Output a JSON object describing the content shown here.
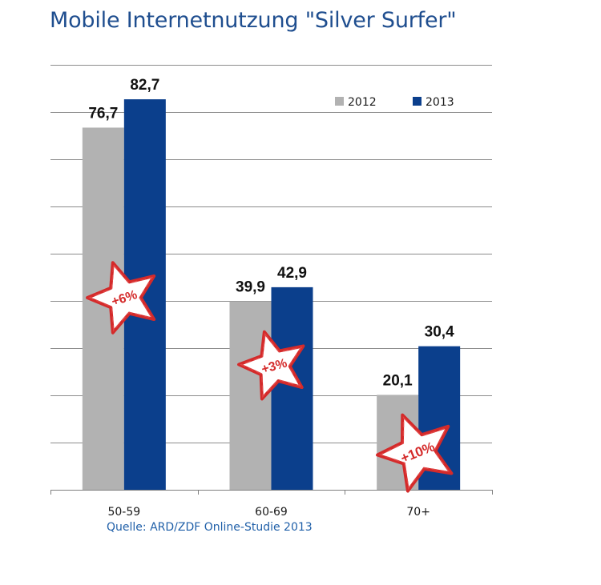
{
  "title": "Mobile Internetnutzung \"Silver Surfer\"",
  "source": "Quelle: ARD/ZDF Online-Studie 2013",
  "chart_data": {
    "type": "bar",
    "title": "Mobile Internetnutzung \"Silver Surfer\"",
    "categories": [
      "50-59",
      "60-69",
      "70+"
    ],
    "series": [
      {
        "name": "2012",
        "values": [
          76.7,
          39.9,
          20.1
        ],
        "labels": [
          "76,7",
          "39,9",
          "20,1"
        ],
        "color": "#b2b2b2"
      },
      {
        "name": "2013",
        "values": [
          82.7,
          42.9,
          30.4
        ],
        "labels": [
          "82,7",
          "42,9",
          "30,4"
        ],
        "color": "#0b3f8c"
      }
    ],
    "ylim": [
      0,
      90
    ],
    "y_axis_labels_shown": false,
    "grid": true,
    "legend_position": "top-right",
    "annotations": [
      "+6%",
      "+3%",
      "+10%"
    ],
    "annotation_style": "red-star",
    "xlabel": "",
    "ylabel": ""
  }
}
